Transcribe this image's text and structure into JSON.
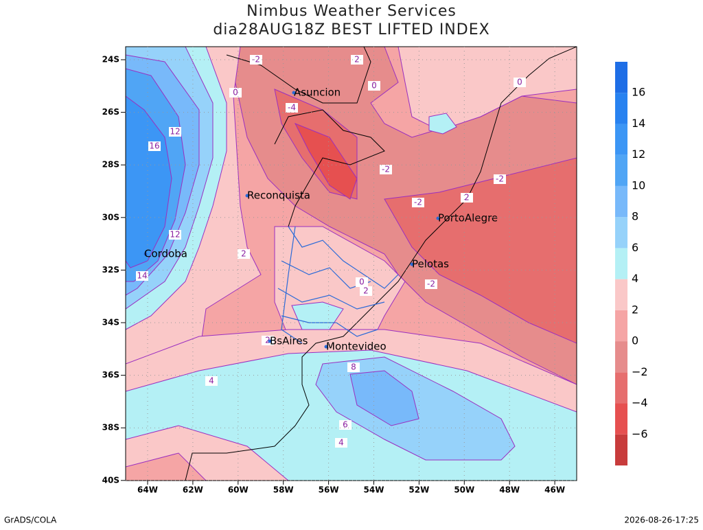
{
  "header": {
    "title": "Nimbus Weather Services",
    "subtitle": "dia28AUG18Z BEST LIFTED INDEX"
  },
  "map": {
    "lat_ticks": [
      "24S",
      "26S",
      "28S",
      "30S",
      "32S",
      "34S",
      "36S",
      "38S",
      "40S"
    ],
    "lon_ticks": [
      "64W",
      "62W",
      "60W",
      "58W",
      "56W",
      "54W",
      "52W",
      "50W",
      "48W",
      "46W"
    ],
    "cities": [
      "Asuncion",
      "Reconquista",
      "PortoAlegre",
      "Cordoba",
      "Pelotas",
      "BsAires",
      "Montevideo"
    ],
    "contour_labels": [
      "-2",
      "2",
      "0",
      "0",
      "0",
      "-4",
      "12",
      "16",
      "-2",
      "-2",
      "2",
      "-2",
      "12",
      "2",
      "14",
      "0",
      "2",
      "-2",
      "2",
      "8",
      "4",
      "6",
      "4"
    ]
  },
  "colorbar": {
    "lim": [
      -8,
      18
    ],
    "ticks": [
      {
        "value": -6,
        "label": "−6"
      },
      {
        "value": -4,
        "label": "−4"
      },
      {
        "value": -2,
        "label": "−2"
      },
      0,
      2,
      4,
      6,
      8,
      10,
      12,
      14,
      16
    ],
    "colors": [
      "#c83c3c",
      "#e65050",
      "#e66e6e",
      "#e68c8c",
      "#f5a5a5",
      "#fac8c8",
      "#b4f0f5",
      "#96d2fa",
      "#78b9fa",
      "#50a5f5",
      "#3c96f5",
      "#2882f0",
      "#1e6ee6"
    ]
  },
  "footer": {
    "left": "GrADS/COLA",
    "right": "2026-08-26-17:25"
  }
}
